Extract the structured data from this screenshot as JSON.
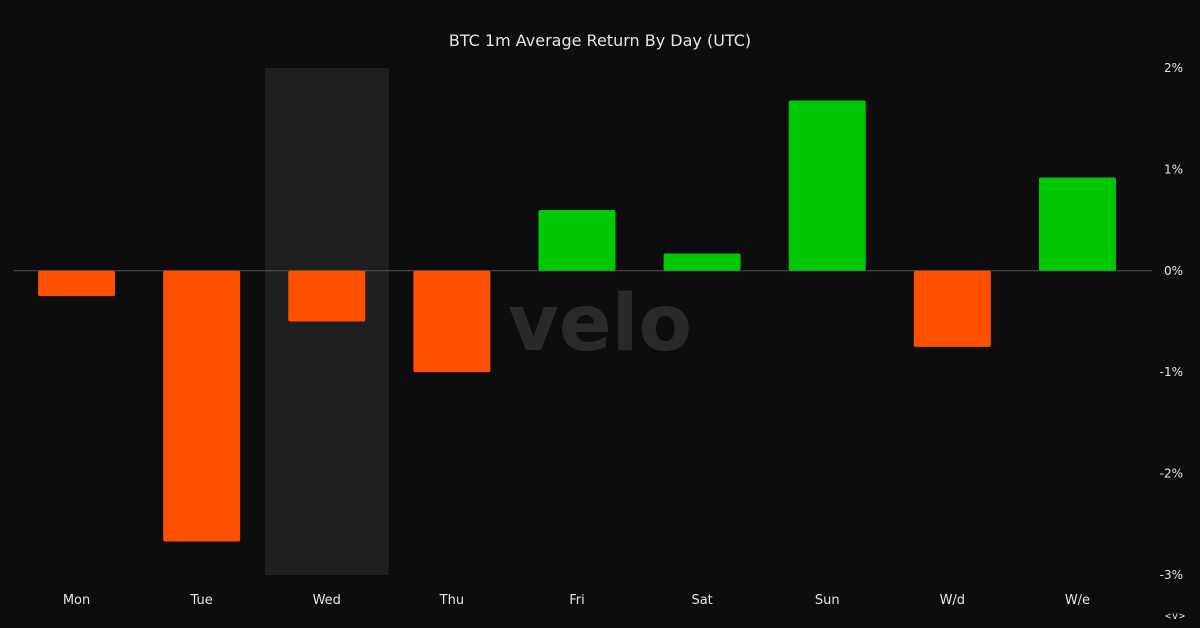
{
  "chart_data": {
    "type": "bar",
    "title": "BTC 1m Average Return By Day (UTC)",
    "xlabel": "",
    "ylabel": "",
    "categories": [
      "Mon",
      "Tue",
      "Wed",
      "Thu",
      "Fri",
      "Sat",
      "Sun",
      "W/d",
      "W/e"
    ],
    "values": [
      -0.25,
      -2.67,
      -0.5,
      -1.0,
      0.6,
      0.17,
      1.68,
      -0.75,
      0.92
    ],
    "ylim": [
      -3,
      2
    ],
    "yticks": [
      2,
      1,
      0,
      -1,
      -2,
      -3
    ],
    "ytick_labels": [
      "2%",
      "1%",
      "0%",
      "-1%",
      "-2%",
      "-3%"
    ],
    "y_axis_position": "right",
    "grid": false,
    "zero_line": true,
    "highlighted_category": "Wed",
    "watermark": "velo",
    "colors": {
      "background": "#0d0d0d",
      "positive": "#00c805",
      "negative": "#ff5000",
      "highlight": "#1f1f1f",
      "text": "#e6e6e6",
      "zero_line": "#555555",
      "watermark": "#2a2a2a"
    }
  },
  "nav_toggle_label": "<v>"
}
